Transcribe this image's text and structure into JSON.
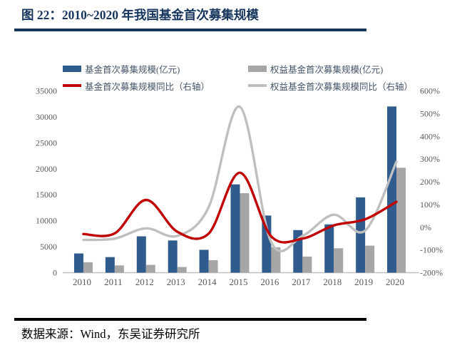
{
  "header": {
    "title": "图 22：2010~2020 年我国基金首次募集规模"
  },
  "footer": {
    "source": "数据来源：Wind，东吴证券研究所"
  },
  "colors": {
    "title_navy": "#17365D",
    "footer_rule": "#000000",
    "bar_blue": "#2F5B8D",
    "bar_gray": "#A6A6A6",
    "line_red": "#C00000",
    "line_gray": "#BFBFBF",
    "axis_text": "#595959",
    "axis_line": "#BFBFBF",
    "legend_text": "#44546A"
  },
  "chart_data": {
    "type": "combo-bar-line",
    "title": "2010~2020 年我国基金首次募集规模",
    "categories": [
      "2010",
      "2011",
      "2012",
      "2013",
      "2014",
      "2015",
      "2016",
      "2017",
      "2018",
      "2019",
      "2020"
    ],
    "series": [
      {
        "name": "基金首次募集规模(亿元)",
        "type": "bar",
        "axis": "left",
        "color": "#2F5B8D",
        "values": [
          3700,
          3000,
          7000,
          6200,
          4400,
          17000,
          11000,
          8200,
          9300,
          14500,
          32000
        ]
      },
      {
        "name": "权益基金首次募集规模(亿元)",
        "type": "bar",
        "axis": "left",
        "color": "#A6A6A6",
        "values": [
          2000,
          1400,
          1500,
          1100,
          2400,
          15300,
          4900,
          3100,
          4700,
          5200,
          20200
        ]
      },
      {
        "name": "基金首次募集规模同比（右轴）",
        "type": "line",
        "axis": "right",
        "color": "#C00000",
        "values_pct": [
          -30,
          -27,
          120,
          -20,
          -28,
          240,
          -40,
          -50,
          8,
          35,
          112
        ]
      },
      {
        "name": "权益基金首次募集规模同比（右轴）",
        "type": "line",
        "axis": "right",
        "color": "#BFBFBF",
        "values_pct": [
          -56,
          -50,
          -5,
          -38,
          88,
          530,
          -66,
          -38,
          55,
          -15,
          288
        ]
      }
    ],
    "left_axis": {
      "min": 0,
      "max": 35000,
      "step": 5000,
      "ticks": [
        "0",
        "5000",
        "10000",
        "15000",
        "20000",
        "25000",
        "30000",
        "35000"
      ]
    },
    "right_axis": {
      "min": -200,
      "max": 600,
      "step": 100,
      "ticks": [
        "-200%",
        "-100%",
        "0%",
        "100%",
        "200%",
        "300%",
        "400%",
        "500%",
        "600%"
      ]
    },
    "grid": false,
    "legend_position": "top",
    "line_smoothing": true
  }
}
